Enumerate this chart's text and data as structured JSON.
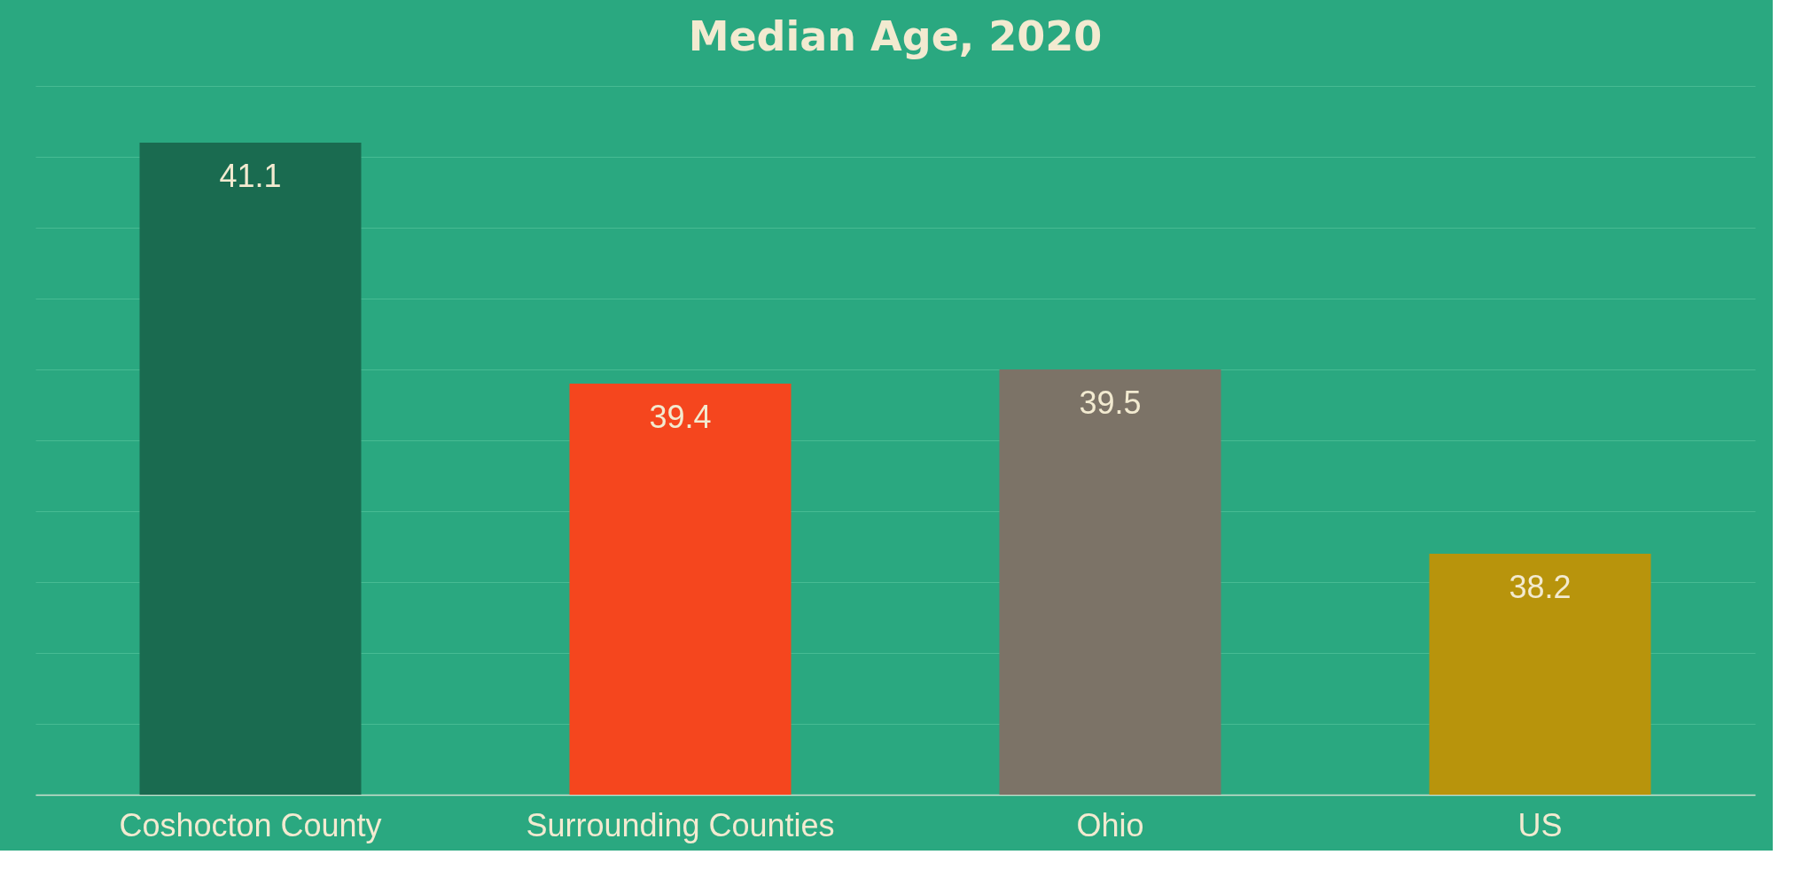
{
  "chart_data": {
    "type": "bar",
    "title": "Median Age, 2020",
    "categories": [
      "Coshocton County",
      "Surrounding Counties",
      "Ohio",
      "US"
    ],
    "values": [
      41.1,
      39.4,
      39.5,
      38.2
    ],
    "colors": [
      "#1a6b50",
      "#f5461e",
      "#7c7367",
      "#b8940c"
    ],
    "ylim": [
      36.5,
      41.5
    ],
    "yticks": [
      {
        "value": 36.5,
        "label": null
      },
      {
        "value": 37,
        "label": null
      },
      {
        "value": 37.5,
        "label": null
      },
      {
        "value": 38,
        "label": null
      },
      {
        "value": 38.5,
        "label": null
      },
      {
        "value": 39,
        "label": null
      },
      {
        "value": 39.5,
        "label": null
      },
      {
        "value": 40,
        "label": null
      },
      {
        "value": 40.5,
        "label": null
      },
      {
        "value": 41,
        "label": null
      },
      {
        "value": 41.5,
        "label": null
      }
    ],
    "grid": "y",
    "tick_labels": "x",
    "data_labels": true
  }
}
